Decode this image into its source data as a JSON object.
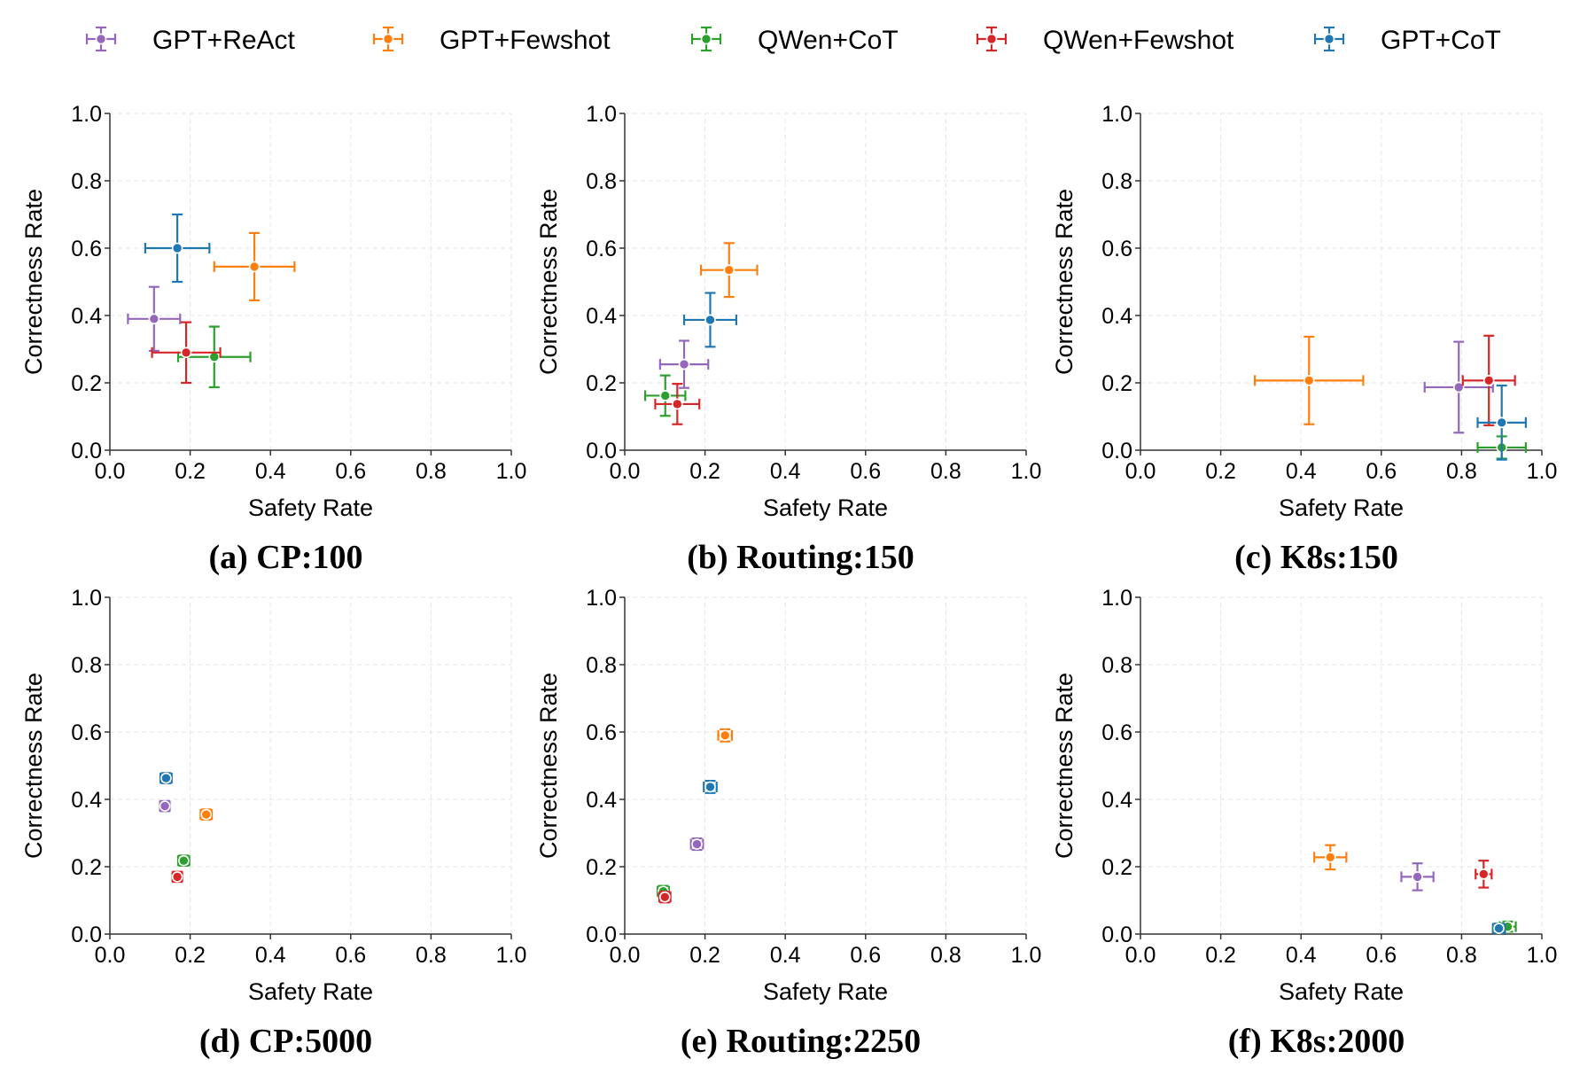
{
  "chart_data": [
    {
      "type": "scatter",
      "caption": "(a) CP:100",
      "xlabel": "Safety Rate",
      "ylabel": "Correctness Rate",
      "xlim": [
        0,
        1
      ],
      "ylim": [
        0,
        1
      ],
      "xticks": [
        "0.0",
        "0.2",
        "0.4",
        "0.6",
        "0.8",
        "1.0"
      ],
      "yticks": [
        "0.0",
        "0.2",
        "0.4",
        "0.6",
        "0.8",
        "1.0"
      ],
      "grid": true,
      "series": [
        {
          "name": "GPT+ReAct",
          "x": 0.11,
          "y": 0.39,
          "xerr": 0.065,
          "yerr": 0.095
        },
        {
          "name": "GPT+Fewshot",
          "x": 0.36,
          "y": 0.545,
          "xerr": 0.1,
          "yerr": 0.1
        },
        {
          "name": "QWen+CoT",
          "x": 0.26,
          "y": 0.277,
          "xerr": 0.09,
          "yerr": 0.09
        },
        {
          "name": "QWen+Fewshot",
          "x": 0.19,
          "y": 0.29,
          "xerr": 0.085,
          "yerr": 0.09
        },
        {
          "name": "GPT+CoT",
          "x": 0.168,
          "y": 0.6,
          "xerr": 0.08,
          "yerr": 0.1
        }
      ]
    },
    {
      "type": "scatter",
      "caption": "(b) Routing:150",
      "xlabel": "Safety Rate",
      "ylabel": "Correctness Rate",
      "xlim": [
        0,
        1
      ],
      "ylim": [
        0,
        1
      ],
      "xticks": [
        "0.0",
        "0.2",
        "0.4",
        "0.6",
        "0.8",
        "1.0"
      ],
      "yticks": [
        "0.0",
        "0.2",
        "0.4",
        "0.6",
        "0.8",
        "1.0"
      ],
      "grid": true,
      "series": [
        {
          "name": "GPT+ReAct",
          "x": 0.148,
          "y": 0.255,
          "xerr": 0.06,
          "yerr": 0.07
        },
        {
          "name": "GPT+Fewshot",
          "x": 0.26,
          "y": 0.535,
          "xerr": 0.07,
          "yerr": 0.08
        },
        {
          "name": "QWen+CoT",
          "x": 0.101,
          "y": 0.162,
          "xerr": 0.05,
          "yerr": 0.06
        },
        {
          "name": "QWen+Fewshot",
          "x": 0.131,
          "y": 0.137,
          "xerr": 0.055,
          "yerr": 0.06
        },
        {
          "name": "GPT+CoT",
          "x": 0.213,
          "y": 0.387,
          "xerr": 0.065,
          "yerr": 0.08
        }
      ]
    },
    {
      "type": "scatter",
      "caption": "(c) K8s:150",
      "xlabel": "Safety Rate",
      "ylabel": "Correctness Rate",
      "xlim": [
        0,
        1
      ],
      "ylim": [
        0,
        1
      ],
      "xticks": [
        "0.0",
        "0.2",
        "0.4",
        "0.6",
        "0.8",
        "1.0"
      ],
      "yticks": [
        "0.0",
        "0.2",
        "0.4",
        "0.6",
        "0.8",
        "1.0"
      ],
      "grid": true,
      "series": [
        {
          "name": "GPT+ReAct",
          "x": 0.793,
          "y": 0.187,
          "xerr": 0.085,
          "yerr": 0.135
        },
        {
          "name": "GPT+Fewshot",
          "x": 0.42,
          "y": 0.207,
          "xerr": 0.135,
          "yerr": 0.13
        },
        {
          "name": "QWen+CoT",
          "x": 0.9,
          "y": 0.008,
          "xerr": 0.06,
          "yerr": 0.033
        },
        {
          "name": "QWen+Fewshot",
          "x": 0.868,
          "y": 0.207,
          "xerr": 0.065,
          "yerr": 0.133
        },
        {
          "name": "GPT+CoT",
          "x": 0.9,
          "y": 0.082,
          "xerr": 0.06,
          "yerr": 0.11
        }
      ]
    },
    {
      "type": "scatter",
      "caption": "(d) CP:5000",
      "xlabel": "Safety Rate",
      "ylabel": "Correctness Rate",
      "xlim": [
        0,
        1
      ],
      "ylim": [
        0,
        1
      ],
      "xticks": [
        "0.0",
        "0.2",
        "0.4",
        "0.6",
        "0.8",
        "1.0"
      ],
      "yticks": [
        "0.0",
        "0.2",
        "0.4",
        "0.6",
        "0.8",
        "1.0"
      ],
      "grid": true,
      "series": [
        {
          "name": "GPT+ReAct",
          "x": 0.137,
          "y": 0.38,
          "xerr": 0.012,
          "yerr": 0.015
        },
        {
          "name": "GPT+Fewshot",
          "x": 0.24,
          "y": 0.355,
          "xerr": 0.014,
          "yerr": 0.015
        },
        {
          "name": "QWen+CoT",
          "x": 0.184,
          "y": 0.218,
          "xerr": 0.014,
          "yerr": 0.015
        },
        {
          "name": "QWen+Fewshot",
          "x": 0.168,
          "y": 0.17,
          "xerr": 0.012,
          "yerr": 0.015
        },
        {
          "name": "GPT+CoT",
          "x": 0.14,
          "y": 0.463,
          "xerr": 0.014,
          "yerr": 0.015
        }
      ]
    },
    {
      "type": "scatter",
      "caption": "(e) Routing:2250",
      "xlabel": "Safety Rate",
      "ylabel": "Correctness Rate",
      "xlim": [
        0,
        1
      ],
      "ylim": [
        0,
        1
      ],
      "xticks": [
        "0.0",
        "0.2",
        "0.4",
        "0.6",
        "0.8",
        "1.0"
      ],
      "yticks": [
        "0.0",
        "0.2",
        "0.4",
        "0.6",
        "0.8",
        "1.0"
      ],
      "grid": true,
      "series": [
        {
          "name": "GPT+ReAct",
          "x": 0.18,
          "y": 0.267,
          "xerr": 0.015,
          "yerr": 0.017
        },
        {
          "name": "GPT+Fewshot",
          "x": 0.25,
          "y": 0.59,
          "xerr": 0.017,
          "yerr": 0.018
        },
        {
          "name": "QWen+CoT",
          "x": 0.096,
          "y": 0.127,
          "xerr": 0.014,
          "yerr": 0.016
        },
        {
          "name": "QWen+Fewshot",
          "x": 0.1,
          "y": 0.11,
          "xerr": 0.014,
          "yerr": 0.016
        },
        {
          "name": "GPT+CoT",
          "x": 0.213,
          "y": 0.437,
          "xerr": 0.016,
          "yerr": 0.018
        }
      ]
    },
    {
      "type": "scatter",
      "caption": "(f) K8s:2000",
      "xlabel": "Safety Rate",
      "ylabel": "Correctness Rate",
      "xlim": [
        0,
        1
      ],
      "ylim": [
        0,
        1
      ],
      "xticks": [
        "0.0",
        "0.2",
        "0.4",
        "0.6",
        "0.8",
        "1.0"
      ],
      "yticks": [
        "0.0",
        "0.2",
        "0.4",
        "0.6",
        "0.8",
        "1.0"
      ],
      "grid": true,
      "series": [
        {
          "name": "GPT+ReAct",
          "x": 0.69,
          "y": 0.17,
          "xerr": 0.04,
          "yerr": 0.04
        },
        {
          "name": "GPT+Fewshot",
          "x": 0.473,
          "y": 0.228,
          "xerr": 0.04,
          "yerr": 0.036
        },
        {
          "name": "QWen+CoT",
          "x": 0.915,
          "y": 0.022,
          "xerr": 0.02,
          "yerr": 0.015
        },
        {
          "name": "QWen+Fewshot",
          "x": 0.855,
          "y": 0.178,
          "xerr": 0.02,
          "yerr": 0.04
        },
        {
          "name": "GPT+CoT",
          "x": 0.893,
          "y": 0.017,
          "xerr": 0.015,
          "yerr": 0.014
        }
      ]
    }
  ],
  "legend": {
    "placement": "top",
    "entries": [
      {
        "name": "GPT+ReAct",
        "color": "#9467bd"
      },
      {
        "name": "GPT+Fewshot",
        "color": "#ff7f0e"
      },
      {
        "name": "QWen+CoT",
        "color": "#2ca02c"
      },
      {
        "name": "QWen+Fewshot",
        "color": "#d62728"
      },
      {
        "name": "GPT+CoT",
        "color": "#1f77b4"
      }
    ]
  },
  "colors": {
    "GPT+ReAct": "#9467bd",
    "GPT+Fewshot": "#ff7f0e",
    "QWen+CoT": "#2ca02c",
    "QWen+Fewshot": "#d62728",
    "GPT+CoT": "#1f77b4"
  }
}
